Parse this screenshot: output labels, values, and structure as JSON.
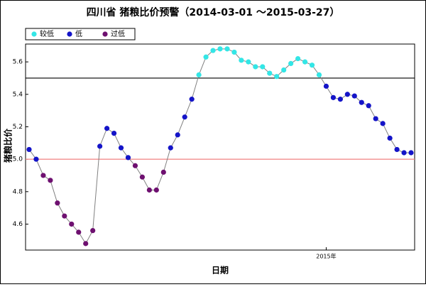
{
  "chart_data": {
    "type": "line",
    "title": "四川省 猪粮比价预警（2014-03-01 ～2015-03-27）",
    "x_label": "日期",
    "y_label": "猪粮比价",
    "categories": [
      null,
      null,
      null,
      null,
      null,
      null,
      null,
      null,
      null,
      null,
      null,
      null,
      null,
      null,
      null,
      null,
      null,
      null,
      null,
      null,
      null,
      null,
      null,
      null,
      null,
      null,
      null,
      null,
      null,
      null,
      null,
      null,
      null,
      null,
      null,
      null,
      null,
      null,
      null,
      null,
      null,
      null,
      "2015年",
      null,
      null,
      null,
      null,
      null,
      null,
      null,
      null,
      null,
      null,
      null,
      null
    ],
    "series": [
      {
        "name": "较低",
        "color": "#33e6e6",
        "values": [
          null,
          null,
          null,
          null,
          null,
          null,
          null,
          null,
          null,
          null,
          null,
          null,
          null,
          null,
          null,
          null,
          null,
          null,
          null,
          null,
          null,
          null,
          null,
          null,
          5.52,
          5.63,
          5.67,
          5.68,
          5.68,
          5.66,
          5.61,
          5.6,
          5.57,
          5.57,
          5.53,
          5.51,
          5.55,
          5.59,
          5.62,
          5.6,
          5.58,
          5.52,
          null,
          null,
          null,
          null,
          null,
          null,
          null,
          null,
          null,
          null,
          null,
          null,
          null
        ]
      },
      {
        "name": "低",
        "color": "#1414c8",
        "values": [
          5.06,
          5.0,
          null,
          null,
          null,
          null,
          null,
          null,
          null,
          null,
          5.08,
          5.19,
          5.16,
          5.07,
          5.01,
          null,
          null,
          null,
          null,
          null,
          5.07,
          5.15,
          5.26,
          5.37,
          null,
          null,
          null,
          null,
          null,
          null,
          null,
          null,
          null,
          null,
          null,
          null,
          null,
          null,
          null,
          null,
          null,
          null,
          5.45,
          5.38,
          5.37,
          5.4,
          5.39,
          5.35,
          5.33,
          5.25,
          5.22,
          5.13,
          5.06,
          5.04,
          5.04
        ]
      },
      {
        "name": "过低",
        "color": "#6e1070",
        "values": [
          null,
          null,
          4.9,
          4.87,
          4.73,
          4.65,
          4.6,
          4.55,
          4.48,
          4.56,
          null,
          null,
          null,
          null,
          null,
          4.96,
          4.89,
          4.81,
          4.81,
          4.92,
          null,
          null,
          null,
          null,
          null,
          null,
          null,
          null,
          null,
          null,
          null,
          null,
          null,
          null,
          null,
          null,
          null,
          null,
          null,
          null,
          null,
          null,
          null,
          null,
          null,
          null,
          null,
          null,
          null,
          null,
          null,
          null,
          null,
          null,
          null
        ]
      }
    ],
    "line_color": "#808080",
    "reference_lines": [
      {
        "value": 5.5,
        "color": "#000000"
      },
      {
        "value": 5,
        "color": "#f08080"
      }
    ],
    "ylim": [
      4.44,
      5.71
    ],
    "yticks": [
      4.6,
      4.8,
      {
        "value": 5,
        "label": "5.0"
      },
      5.2,
      5.4,
      5.6
    ],
    "legend": "top-left"
  }
}
